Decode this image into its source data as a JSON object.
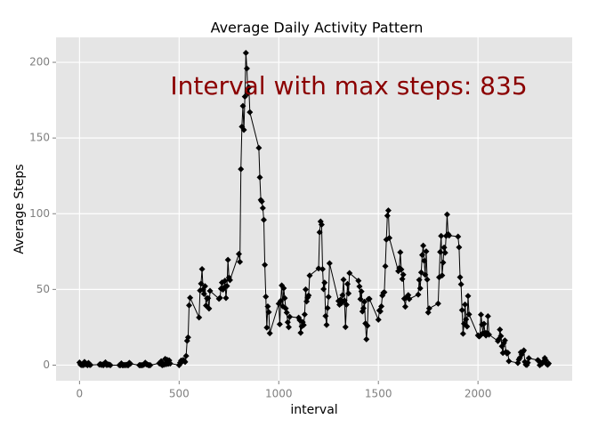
{
  "chart_data": {
    "type": "line",
    "title": "Average Daily Activity Pattern",
    "xlabel": "interval",
    "ylabel": "Average Steps",
    "annotation": "Interval with max steps: 835",
    "annotation_color": "#8b0000",
    "color": "#000000",
    "grid": true,
    "xlim": [
      -117.75,
      2472.75
    ],
    "xticks": [
      0,
      500,
      1000,
      1500,
      2000
    ],
    "ylim": [
      -10.31,
      216.48
    ],
    "yticks": [
      0,
      50,
      100,
      150,
      200
    ],
    "x": [
      0,
      5,
      10,
      15,
      20,
      25,
      30,
      35,
      40,
      45,
      50,
      55,
      100,
      105,
      110,
      115,
      120,
      125,
      130,
      135,
      140,
      145,
      150,
      155,
      200,
      205,
      210,
      215,
      220,
      225,
      230,
      235,
      240,
      245,
      250,
      255,
      300,
      305,
      310,
      315,
      320,
      325,
      330,
      335,
      340,
      345,
      350,
      355,
      400,
      405,
      410,
      415,
      420,
      425,
      430,
      435,
      440,
      445,
      450,
      455,
      500,
      505,
      510,
      515,
      520,
      525,
      530,
      535,
      540,
      545,
      550,
      555,
      600,
      605,
      610,
      615,
      620,
      625,
      630,
      635,
      640,
      645,
      650,
      655,
      700,
      705,
      710,
      715,
      720,
      725,
      730,
      735,
      740,
      745,
      750,
      755,
      800,
      805,
      810,
      815,
      820,
      825,
      830,
      835,
      840,
      845,
      850,
      855,
      900,
      905,
      910,
      915,
      920,
      925,
      930,
      935,
      940,
      945,
      950,
      955,
      1000,
      1005,
      1010,
      1015,
      1020,
      1025,
      1030,
      1035,
      1040,
      1045,
      1050,
      1055,
      1100,
      1105,
      1110,
      1115,
      1120,
      1125,
      1130,
      1135,
      1140,
      1145,
      1150,
      1155,
      1200,
      1205,
      1210,
      1215,
      1220,
      1225,
      1230,
      1235,
      1240,
      1245,
      1250,
      1255,
      1300,
      1305,
      1310,
      1315,
      1320,
      1325,
      1330,
      1335,
      1340,
      1345,
      1350,
      1355,
      1400,
      1405,
      1410,
      1415,
      1420,
      1425,
      1430,
      1435,
      1440,
      1445,
      1450,
      1455,
      1500,
      1505,
      1510,
      1515,
      1520,
      1525,
      1530,
      1535,
      1540,
      1545,
      1550,
      1555,
      1600,
      1605,
      1610,
      1615,
      1620,
      1625,
      1630,
      1635,
      1640,
      1645,
      1650,
      1655,
      1700,
      1705,
      1710,
      1715,
      1720,
      1725,
      1730,
      1735,
      1740,
      1745,
      1750,
      1755,
      1800,
      1805,
      1810,
      1815,
      1820,
      1825,
      1830,
      1835,
      1840,
      1845,
      1850,
      1855,
      1900,
      1905,
      1910,
      1915,
      1920,
      1925,
      1930,
      1935,
      1940,
      1945,
      1950,
      1955,
      2000,
      2005,
      2010,
      2015,
      2020,
      2025,
      2030,
      2035,
      2040,
      2045,
      2050,
      2055,
      2100,
      2105,
      2110,
      2115,
      2120,
      2125,
      2130,
      2135,
      2140,
      2145,
      2150,
      2155,
      2200,
      2205,
      2210,
      2215,
      2220,
      2225,
      2230,
      2235,
      2240,
      2245,
      2250,
      2255,
      2300,
      2305,
      2310,
      2315,
      2320,
      2325,
      2330,
      2335,
      2340,
      2345,
      2350,
      2355
    ],
    "values": [
      1.72,
      0.34,
      0.13,
      0.15,
      0.08,
      2.09,
      0.53,
      0.87,
      0,
      1.47,
      0.3,
      0.13,
      0.32,
      0.68,
      0.15,
      0.34,
      0,
      1.11,
      1.83,
      0.17,
      0.17,
      0.38,
      0.26,
      0,
      0,
      0,
      1.13,
      0,
      0,
      0.13,
      0,
      0.23,
      0,
      0,
      1.55,
      0.94,
      0,
      0,
      0,
      0,
      0.21,
      0.62,
      1.62,
      0.58,
      0.49,
      0.08,
      0,
      0,
      1.19,
      0.94,
      2.57,
      0,
      0.34,
      0.36,
      4.11,
      0.66,
      3.49,
      0.83,
      3.11,
      1.11,
      0,
      1.57,
      3,
      2.25,
      3.32,
      2.96,
      2.09,
      6.06,
      16.02,
      18.34,
      39.45,
      44.49,
      31.49,
      49.26,
      53.77,
      63.45,
      49.96,
      47.08,
      52.15,
      39.34,
      44.02,
      44.17,
      37.36,
      49.04,
      43.81,
      44.38,
      50.51,
      54.51,
      49.92,
      50.98,
      55.68,
      44.32,
      52.26,
      69.55,
      57.85,
      56.15,
      73.38,
      68.21,
      129.43,
      157.53,
      171.15,
      155.4,
      177.3,
      206.17,
      195.92,
      179.57,
      183.4,
      167.02,
      143.45,
      124.04,
      109.11,
      108.11,
      103.72,
      95.96,
      66.21,
      45.23,
      24.79,
      38.75,
      34.98,
      21.06,
      40.57,
      26.98,
      42.42,
      52.66,
      38.92,
      50.79,
      44.28,
      37.42,
      34.7,
      28.34,
      25.09,
      31.94,
      31.36,
      29.68,
      21.32,
      25.55,
      28.38,
      26.47,
      33.43,
      49.98,
      42.04,
      44.6,
      46.04,
      59.19,
      63.87,
      87.7,
      94.85,
      92.77,
      63.4,
      50.17,
      54.47,
      32.42,
      26.53,
      37.74,
      45.06,
      67.28,
      42.34,
      39.89,
      43.26,
      40.98,
      46.25,
      56.43,
      42.75,
      25.13,
      39.96,
      53.55,
      47.32,
      60.81,
      55.75,
      51.96,
      43.58,
      48.7,
      35.47,
      37.55,
      41.85,
      27.51,
      17.11,
      26.08,
      43.62,
      43.77,
      30.02,
      36.08,
      35.49,
      38.85,
      45.96,
      47.75,
      48.13,
      65.32,
      82.91,
      98.66,
      102.11,
      83.96,
      62.13,
      64.13,
      74.55,
      63.17,
      56.91,
      59.77,
      43.87,
      38.57,
      44.66,
      45.45,
      46.21,
      43.68,
      46.62,
      56.3,
      50.72,
      61.23,
      72.72,
      78.94,
      68.94,
      59.66,
      75.09,
      56.51,
      34.77,
      37.45,
      40.68,
      58.02,
      74.7,
      85.32,
      59.26,
      67.77,
      77.7,
      74.25,
      85.34,
      99.45,
      86.58,
      85.6,
      84.87,
      77.83,
      58.04,
      53.36,
      36.32,
      20.72,
      27.4,
      40.02,
      30.21,
      25.55,
      45.66,
      33.53,
      19.62,
      19.02,
      19.34,
      33.34,
      26.81,
      21.17,
      27.3,
      21.34,
      19.55,
      21.32,
      32.3,
      20.15,
      15.94,
      17.23,
      23.45,
      19.25,
      12.45,
      8.02,
      14.66,
      16.3,
      8.68,
      7.79,
      8.13,
      2.62,
      1.45,
      3.68,
      4.81,
      8.51,
      7.08,
      8.7,
      9.75,
      2.21,
      0.32,
      0.11,
      1.6,
      4.6,
      3.3,
      2.85,
      0,
      0.83,
      0.96,
      1.58,
      2.6,
      4.7,
      3.3,
      0.64,
      0.23,
      1.08
    ]
  }
}
